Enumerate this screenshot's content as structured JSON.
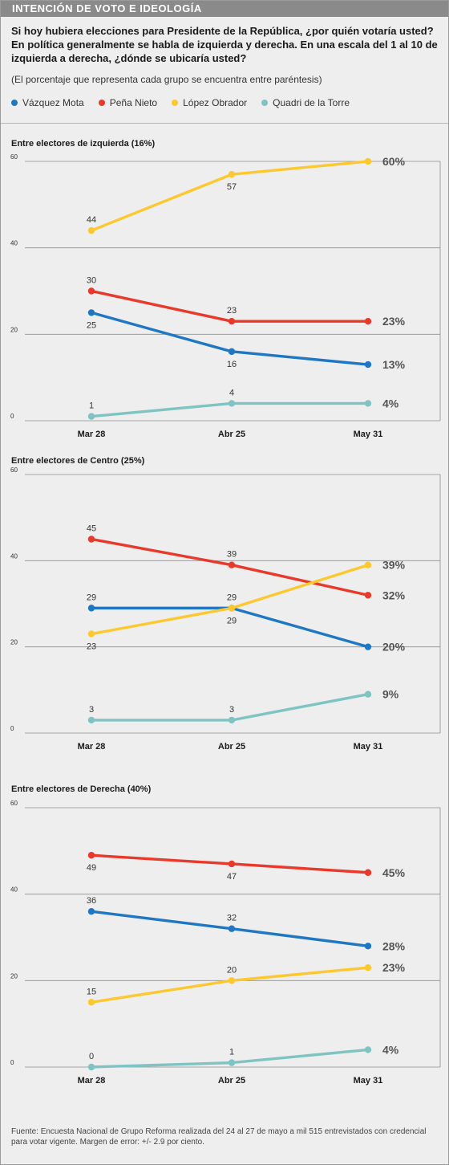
{
  "header": {
    "title": "INTENCIÓN DE VOTO E IDEOLOGÍA"
  },
  "question": "Si hoy hubiera elecciones para Presidente de la República, ¿por quién votaría usted? En política generalmente se habla de izquierda y derecha. En una escala del 1 al 10 de izquierda a derecha, ¿dónde se ubicaría usted?",
  "note": "(El porcentaje que representa cada grupo se encuentra entre paréntesis)",
  "legend": [
    {
      "name": "Vázquez Mota",
      "color": "#1f77c4"
    },
    {
      "name": "Peña Nieto",
      "color": "#e8392b"
    },
    {
      "name": "López Obrador",
      "color": "#fdc82f"
    },
    {
      "name": "Quadri de la Torre",
      "color": "#7fc4c2"
    }
  ],
  "chart_data": [
    {
      "type": "line",
      "title": "Entre electores de izquierda (16%)",
      "categories": [
        "Mar 28",
        "Abr 25",
        "May 31"
      ],
      "ylim": [
        0,
        60
      ],
      "yticks": [
        0,
        20,
        40,
        60
      ],
      "grid": true,
      "series": [
        {
          "name": "López Obrador",
          "color": "#fdc82f",
          "values": [
            44,
            57,
            60
          ],
          "labels": [
            "44",
            "57",
            ""
          ],
          "label_pos": [
            "above",
            "below",
            "none"
          ],
          "end_label": "60%"
        },
        {
          "name": "Peña Nieto",
          "color": "#e8392b",
          "values": [
            30,
            23,
            23
          ],
          "labels": [
            "30",
            "23",
            ""
          ],
          "label_pos": [
            "above",
            "above",
            "none"
          ],
          "end_label": "23%"
        },
        {
          "name": "Vázquez Mota",
          "color": "#1f77c4",
          "values": [
            25,
            16,
            13
          ],
          "labels": [
            "25",
            "16",
            ""
          ],
          "label_pos": [
            "below",
            "below",
            "none"
          ],
          "end_label": "13%"
        },
        {
          "name": "Quadri de la Torre",
          "color": "#7fc4c2",
          "values": [
            1,
            4,
            4
          ],
          "labels": [
            "1",
            "4",
            ""
          ],
          "label_pos": [
            "above",
            "above",
            "none"
          ],
          "end_label": "4%"
        }
      ]
    },
    {
      "type": "line",
      "title": "Entre electores de Centro (25%)",
      "categories": [
        "Mar 28",
        "Abr 25",
        "May 31"
      ],
      "ylim": [
        0,
        60
      ],
      "yticks": [
        0,
        20,
        40,
        60
      ],
      "grid": true,
      "series": [
        {
          "name": "Peña Nieto",
          "color": "#e8392b",
          "values": [
            45,
            39,
            32
          ],
          "labels": [
            "45",
            "39",
            ""
          ],
          "label_pos": [
            "above",
            "above",
            "none"
          ],
          "end_label": "32%"
        },
        {
          "name": "Vázquez Mota",
          "color": "#1f77c4",
          "values": [
            29,
            29,
            20
          ],
          "labels": [
            "29",
            "29",
            ""
          ],
          "label_pos": [
            "above",
            "above",
            "none"
          ],
          "end_label": "20%"
        },
        {
          "name": "López Obrador",
          "color": "#fdc82f",
          "values": [
            23,
            29,
            39
          ],
          "labels": [
            "23",
            "29",
            ""
          ],
          "label_pos": [
            "below",
            "below",
            "none"
          ],
          "end_label": "39%"
        },
        {
          "name": "Quadri de la Torre",
          "color": "#7fc4c2",
          "values": [
            3,
            3,
            9
          ],
          "labels": [
            "3",
            "3",
            ""
          ],
          "label_pos": [
            "above",
            "above",
            "none"
          ],
          "end_label": "9%"
        }
      ]
    },
    {
      "type": "line",
      "title": "Entre electores de Derecha (40%)",
      "categories": [
        "Mar 28",
        "Abr 25",
        "May 31"
      ],
      "ylim": [
        0,
        60
      ],
      "yticks": [
        0,
        20,
        40,
        60
      ],
      "grid": true,
      "series": [
        {
          "name": "Peña Nieto",
          "color": "#e8392b",
          "values": [
            49,
            47,
            45
          ],
          "labels": [
            "49",
            "47",
            ""
          ],
          "label_pos": [
            "below",
            "below",
            "none"
          ],
          "end_label": "45%"
        },
        {
          "name": "Vázquez Mota",
          "color": "#1f77c4",
          "values": [
            36,
            32,
            28
          ],
          "labels": [
            "36",
            "32",
            ""
          ],
          "label_pos": [
            "above",
            "above",
            "none"
          ],
          "end_label": "28%"
        },
        {
          "name": "López Obrador",
          "color": "#fdc82f",
          "values": [
            15,
            20,
            23
          ],
          "labels": [
            "15",
            "20",
            ""
          ],
          "label_pos": [
            "above",
            "above",
            "none"
          ],
          "end_label": "23%"
        },
        {
          "name": "Quadri de la Torre",
          "color": "#7fc4c2",
          "values": [
            0,
            1,
            4
          ],
          "labels": [
            "0",
            "1",
            ""
          ],
          "label_pos": [
            "above",
            "above",
            "none"
          ],
          "end_label": "4%"
        }
      ]
    }
  ],
  "source": "Fuente: Encuesta Nacional de Grupo Reforma realizada del 24 al 27 de mayo a mil 515 entrevistados con credencial para votar vigente. Margen de error: +/- 2.9 por ciento."
}
